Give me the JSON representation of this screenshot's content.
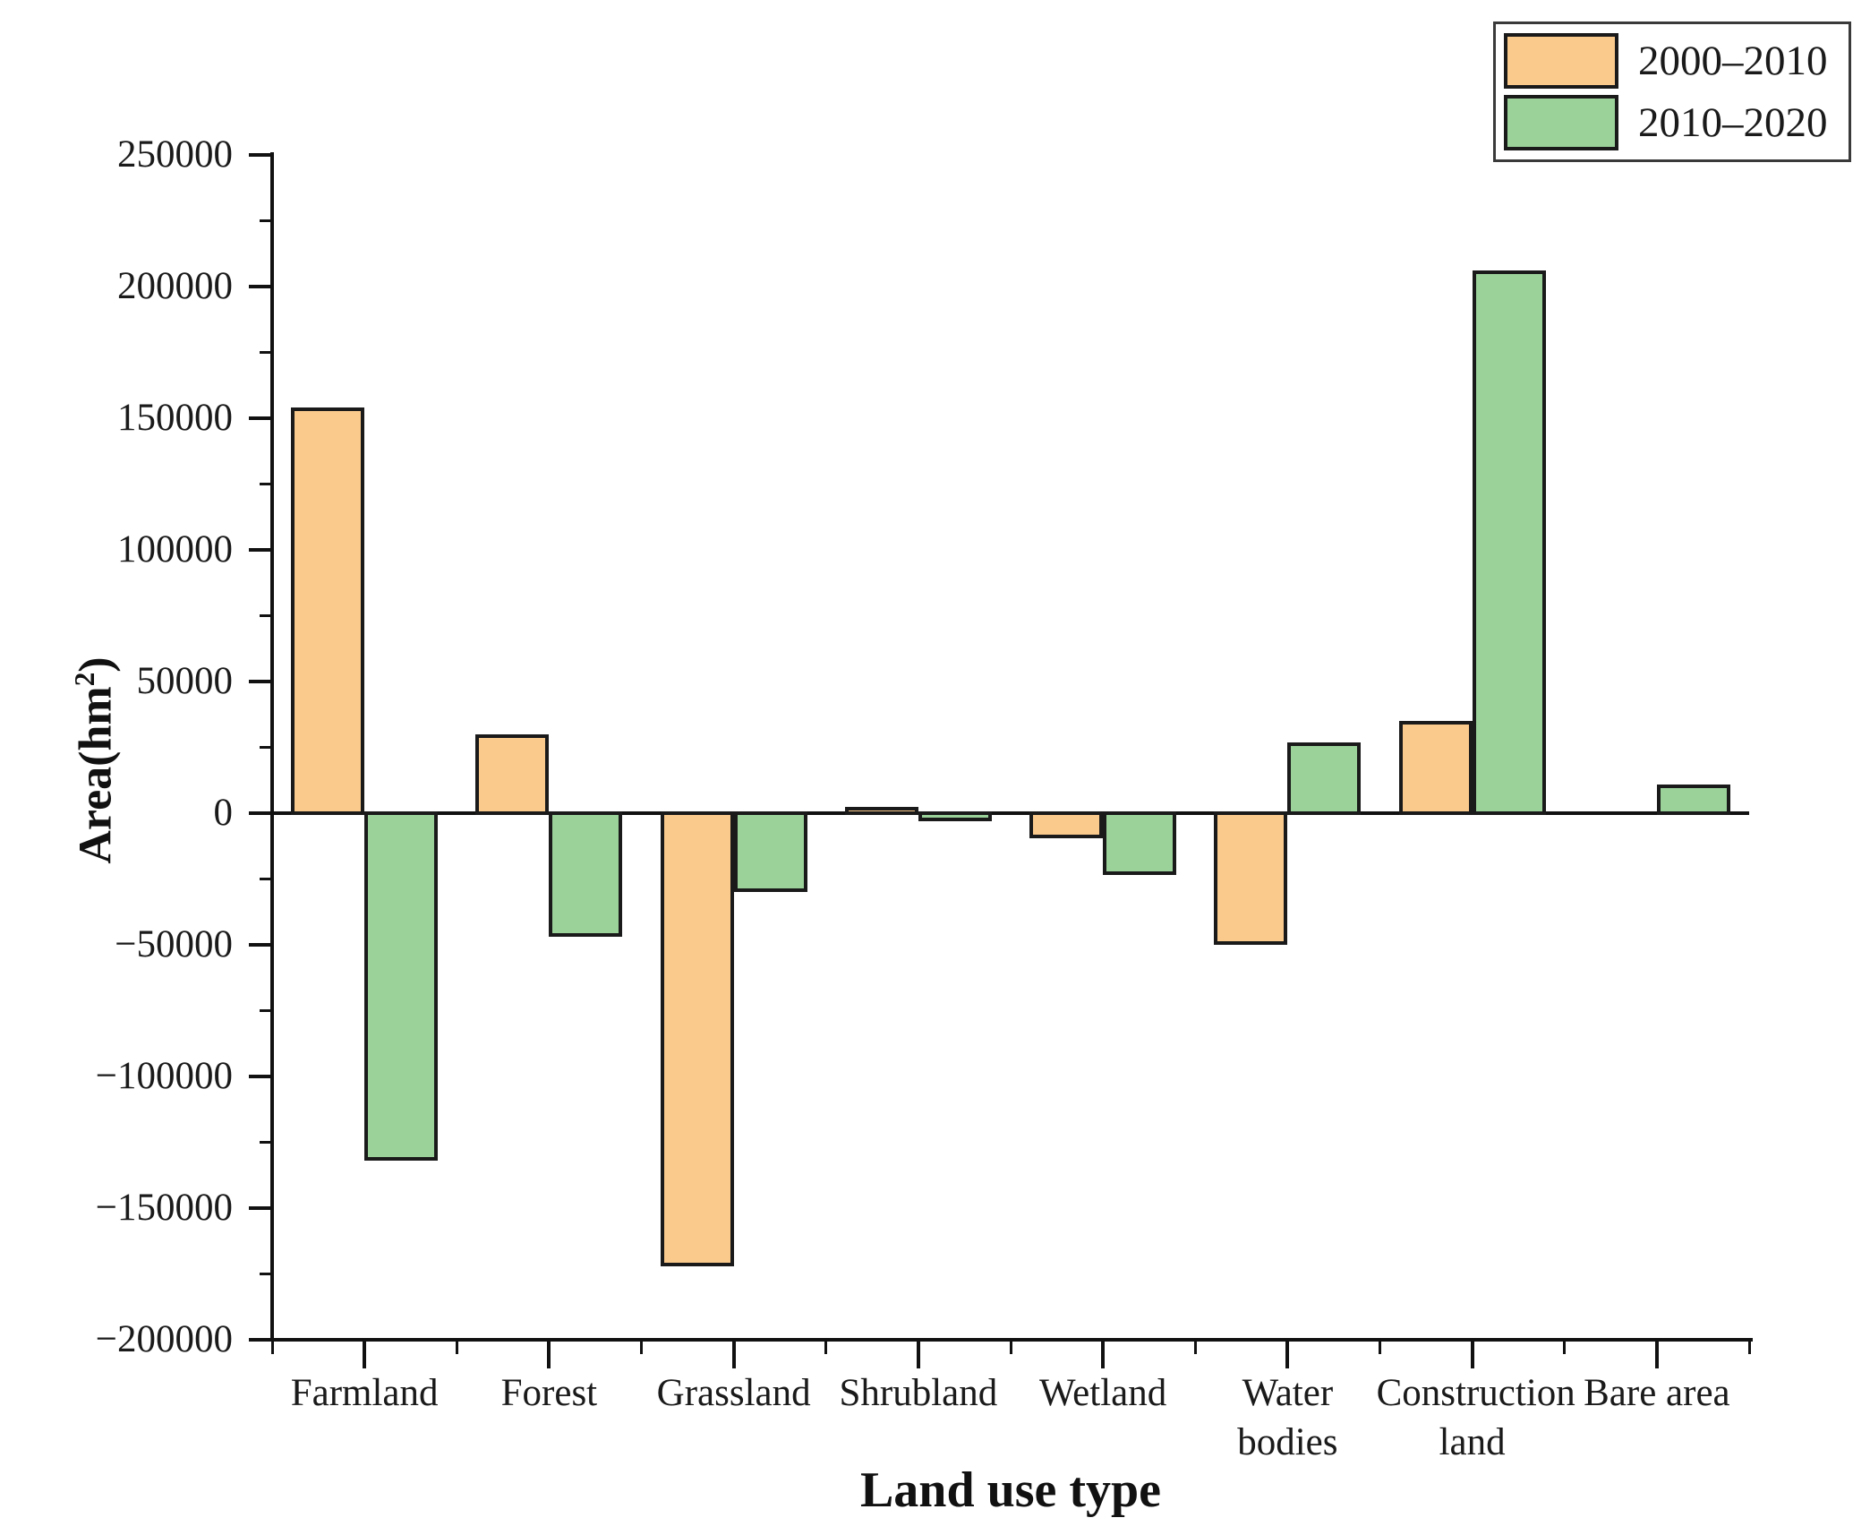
{
  "titles": {
    "y_prefix": "Area(hm",
    "y_sup": "2",
    "y_suffix": ")",
    "x": "Land use type"
  },
  "legend": {
    "position": "top-right",
    "items": [
      {
        "label": "2000–2010",
        "color": "#FACA8D"
      },
      {
        "label": "2010–2020",
        "color": "#9BD29A"
      }
    ]
  },
  "chart_data": {
    "type": "bar",
    "title": "",
    "xlabel": "Land use type",
    "ylabel": "Area(hm2)",
    "categories": [
      "Farmland",
      "Forest",
      "Grassland",
      "Shrubland",
      "Wetland",
      "Water bodies",
      "Construction land",
      "Bare area"
    ],
    "categories_wrapped": [
      [
        "Farmland"
      ],
      [
        "Forest"
      ],
      [
        "Grassland"
      ],
      [
        "Shrubland"
      ],
      [
        "Wetland"
      ],
      [
        "Water",
        "bodies"
      ],
      [
        "Construction",
        "land"
      ],
      [
        "Bare area"
      ]
    ],
    "series": [
      {
        "name": "2000–2010",
        "color": "#FACA8D",
        "values": [
          154000,
          30000,
          -172000,
          2500,
          -9500,
          -50000,
          35000,
          0
        ]
      },
      {
        "name": "2010–2020",
        "color": "#9BD29A",
        "values": [
          -132000,
          -47000,
          -30000,
          -3000,
          -23500,
          27000,
          206000,
          11000
        ]
      }
    ],
    "ylim": [
      -200000,
      250000
    ],
    "ytick_step": 50000,
    "yminor_step": 25000,
    "ytick_labels": [
      "−200000",
      "−150000",
      "−100000",
      "−50000",
      "0",
      "50000",
      "100000",
      "150000",
      "200000",
      "250000"
    ],
    "grid": false,
    "bar_edge_color": "#1a1a1a",
    "legend_position": "top-right"
  }
}
